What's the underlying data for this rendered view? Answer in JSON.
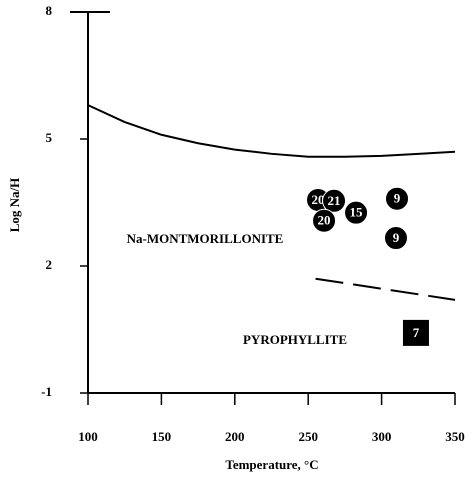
{
  "chart_data": {
    "type": "scatter",
    "x_label": "Temperature, °C",
    "y_label": "Log Na/H",
    "xlim": [
      100,
      350
    ],
    "xticks": [
      100,
      150,
      200,
      250,
      300,
      350
    ],
    "ylim": [
      -1,
      8
    ],
    "yticks": [
      -1,
      2,
      5,
      8
    ],
    "color": "#000000",
    "x": [
      256.7,
      267.6,
      282.6,
      260.8,
      310.5,
      309.8,
      323.4
    ],
    "values": [
      3.56,
      3.54,
      3.26,
      3.07,
      3.59,
      2.66,
      0.42
    ],
    "point_labels": [
      "20",
      "21",
      "15",
      "20",
      "9",
      "9",
      "7"
    ],
    "marker_shapes": [
      "circle",
      "circle",
      "circle",
      "circle",
      "circle",
      "circle",
      "square"
    ],
    "boundaries": [
      {
        "style": "solid",
        "x": [
          100,
          125,
          150,
          175,
          200,
          225,
          250,
          275,
          300,
          325,
          350
        ],
        "values": [
          5.8,
          5.4,
          5.1,
          4.9,
          4.75,
          4.65,
          4.58,
          4.58,
          4.6,
          4.65,
          4.7
        ]
      },
      {
        "style": "dashed",
        "x": [
          255,
          350
        ],
        "values": [
          1.7,
          1.2
        ]
      }
    ],
    "annotations": [
      "Na-MONTMORILLONITE",
      "PYROPHYLLITE"
    ]
  }
}
